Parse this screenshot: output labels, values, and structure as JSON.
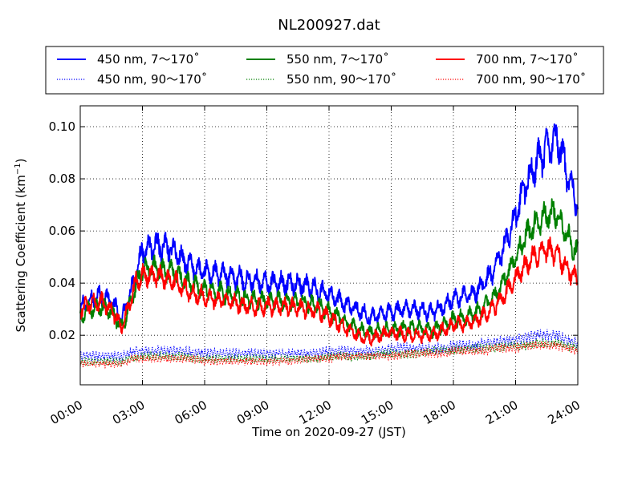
{
  "chart_data": {
    "type": "line",
    "title": "NL200927.dat",
    "xlabel": "Time on 2020-09-27 (JST)",
    "ylabel_main": "Scattering Coefficient (km",
    "ylabel_sup": "−1",
    "ylabel_end": ")",
    "xlim": [
      "2020-09-27 00:00",
      "2020-09-28 00:00"
    ],
    "ylim": [
      0.001,
      0.108
    ],
    "x_ticks": [
      {
        "hour": 0,
        "label": "00:00"
      },
      {
        "hour": 3,
        "label": "03:00"
      },
      {
        "hour": 6,
        "label": "06:00"
      },
      {
        "hour": 9,
        "label": "09:00"
      },
      {
        "hour": 12,
        "label": "12:00"
      },
      {
        "hour": 15,
        "label": "15:00"
      },
      {
        "hour": 18,
        "label": "18:00"
      },
      {
        "hour": 21,
        "label": "21:00"
      },
      {
        "hour": 24,
        "label": "24:00"
      }
    ],
    "y_ticks": [
      {
        "value": 0.02,
        "label": "0.02"
      },
      {
        "value": 0.04,
        "label": "0.04"
      },
      {
        "value": 0.06,
        "label": "0.06"
      },
      {
        "value": 0.08,
        "label": "0.08"
      },
      {
        "value": 0.1,
        "label": "0.10"
      }
    ],
    "grid": true,
    "legend_position": "top",
    "legend_columns": 3,
    "hours": [
      0,
      0.5,
      1,
      1.5,
      2,
      2.3,
      2.7,
      3,
      3.5,
      4,
      4.5,
      5,
      5.5,
      6,
      7,
      8,
      9,
      10,
      11,
      11.5,
      12,
      12.5,
      13,
      13.5,
      14,
      14.5,
      15,
      16,
      17,
      17.5,
      18,
      19,
      19.5,
      20,
      20.5,
      21,
      21.5,
      22,
      22.5,
      23,
      23.5,
      24
    ],
    "series": [
      {
        "name": "450 nm, 7～170˚",
        "color": "#0000ff",
        "style": "solid",
        "noise": 0.0022,
        "period": 0.4,
        "values": [
          0.031,
          0.034,
          0.035,
          0.033,
          0.026,
          0.033,
          0.044,
          0.052,
          0.054,
          0.054,
          0.053,
          0.048,
          0.046,
          0.044,
          0.043,
          0.041,
          0.04,
          0.04,
          0.039,
          0.037,
          0.036,
          0.033,
          0.031,
          0.029,
          0.027,
          0.028,
          0.029,
          0.03,
          0.029,
          0.031,
          0.034,
          0.036,
          0.04,
          0.046,
          0.055,
          0.066,
          0.078,
          0.086,
          0.091,
          0.096,
          0.082,
          0.07
        ]
      },
      {
        "name": "450 nm, 90～170˚",
        "color": "#0000ff",
        "style": "dotted",
        "noise": 0.0016,
        "period": 0.15,
        "values": [
          0.012,
          0.012,
          0.012,
          0.012,
          0.012,
          0.013,
          0.014,
          0.014,
          0.014,
          0.014,
          0.014,
          0.014,
          0.013,
          0.013,
          0.013,
          0.013,
          0.013,
          0.013,
          0.013,
          0.013,
          0.014,
          0.014,
          0.014,
          0.014,
          0.014,
          0.014,
          0.015,
          0.015,
          0.015,
          0.015,
          0.016,
          0.016,
          0.017,
          0.017,
          0.018,
          0.018,
          0.019,
          0.02,
          0.02,
          0.02,
          0.018,
          0.017
        ]
      },
      {
        "name": "550 nm, 7～170˚",
        "color": "#008000",
        "style": "solid",
        "noise": 0.002,
        "period": 0.4,
        "values": [
          0.027,
          0.03,
          0.031,
          0.029,
          0.023,
          0.029,
          0.039,
          0.045,
          0.046,
          0.045,
          0.044,
          0.041,
          0.039,
          0.038,
          0.036,
          0.034,
          0.033,
          0.033,
          0.032,
          0.031,
          0.029,
          0.027,
          0.024,
          0.022,
          0.021,
          0.022,
          0.022,
          0.023,
          0.022,
          0.024,
          0.026,
          0.028,
          0.031,
          0.035,
          0.042,
          0.05,
          0.058,
          0.063,
          0.066,
          0.067,
          0.058,
          0.051
        ]
      },
      {
        "name": "550 nm, 90～170˚",
        "color": "#008000",
        "style": "dotted",
        "noise": 0.0014,
        "period": 0.15,
        "values": [
          0.01,
          0.01,
          0.01,
          0.01,
          0.01,
          0.011,
          0.011,
          0.012,
          0.012,
          0.012,
          0.012,
          0.012,
          0.011,
          0.011,
          0.011,
          0.011,
          0.011,
          0.011,
          0.011,
          0.011,
          0.012,
          0.012,
          0.012,
          0.012,
          0.012,
          0.013,
          0.013,
          0.013,
          0.014,
          0.014,
          0.014,
          0.015,
          0.015,
          0.015,
          0.016,
          0.016,
          0.016,
          0.017,
          0.017,
          0.017,
          0.016,
          0.015
        ]
      },
      {
        "name": "700 nm, 7～170˚",
        "color": "#ff0000",
        "style": "solid",
        "noise": 0.002,
        "period": 0.4,
        "values": [
          0.03,
          0.032,
          0.033,
          0.03,
          0.023,
          0.03,
          0.041,
          0.043,
          0.043,
          0.042,
          0.041,
          0.038,
          0.036,
          0.035,
          0.033,
          0.031,
          0.031,
          0.031,
          0.03,
          0.029,
          0.027,
          0.024,
          0.022,
          0.019,
          0.019,
          0.02,
          0.021,
          0.02,
          0.02,
          0.022,
          0.024,
          0.025,
          0.028,
          0.031,
          0.036,
          0.042,
          0.047,
          0.051,
          0.053,
          0.051,
          0.045,
          0.041
        ]
      },
      {
        "name": "700 nm, 90～170˚",
        "color": "#ff0000",
        "style": "dotted",
        "noise": 0.0013,
        "period": 0.15,
        "values": [
          0.009,
          0.009,
          0.009,
          0.009,
          0.009,
          0.01,
          0.011,
          0.011,
          0.011,
          0.011,
          0.011,
          0.011,
          0.011,
          0.01,
          0.01,
          0.01,
          0.01,
          0.01,
          0.011,
          0.011,
          0.011,
          0.012,
          0.012,
          0.012,
          0.012,
          0.012,
          0.012,
          0.013,
          0.013,
          0.013,
          0.014,
          0.014,
          0.014,
          0.015,
          0.015,
          0.015,
          0.016,
          0.016,
          0.016,
          0.016,
          0.015,
          0.014
        ]
      }
    ]
  }
}
